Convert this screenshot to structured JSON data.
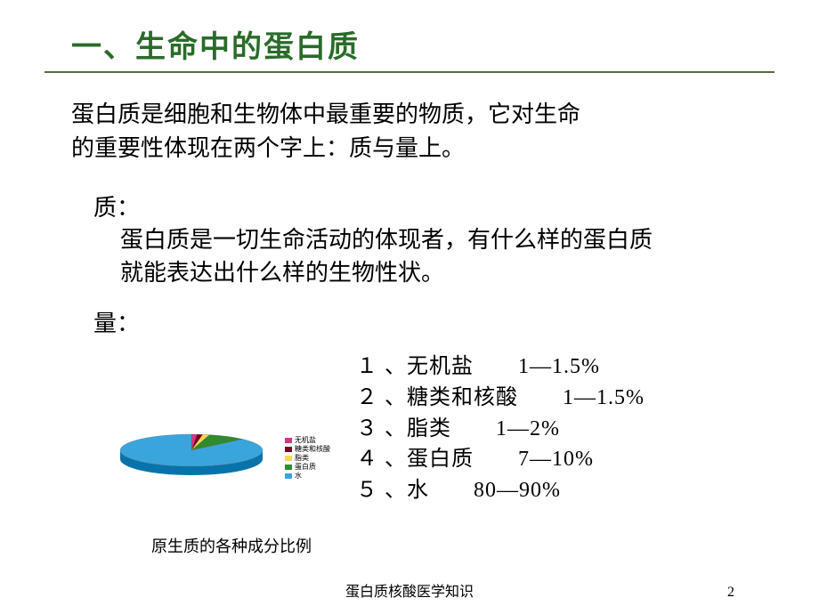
{
  "title": "一、生命中的蛋白质",
  "intro_l1": "蛋白质是细胞和生物体中最重要的物质，它对生命",
  "intro_l2": "的重要性体现在两个字上：质与量上。",
  "quality_label": "质：",
  "quality_l1": "蛋白质是一切生命活动的体现者，有什么样的蛋白质",
  "quality_l2": "就能表达出什么样的生物性状。",
  "quantity_label": "量：",
  "composition_list": [
    {
      "idx": "１",
      "name": "无机盐",
      "range": "1—1.5%"
    },
    {
      "idx": "２",
      "name": "糖类和核酸",
      "range": "1—1.5%"
    },
    {
      "idx": "３",
      "name": "脂类",
      "range": "1—2%"
    },
    {
      "idx": "４",
      "name": "蛋白质",
      "range": "7—10%"
    },
    {
      "idx": "５",
      "name": "水",
      "range": "80—90%"
    }
  ],
  "chart": {
    "type": "pie-3d",
    "caption": "原生质的各种成分比例",
    "background_color": "#ffffff",
    "slices": [
      {
        "label": "无机盐",
        "value": 1.25,
        "color": "#d63384"
      },
      {
        "label": "糖类和核酸",
        "value": 1.25,
        "color": "#7a0019"
      },
      {
        "label": "脂类",
        "value": 1.5,
        "color": "#f8d84a"
      },
      {
        "label": "蛋白质",
        "value": 8.5,
        "color": "#2e8b2e"
      },
      {
        "label": "水",
        "value": 85,
        "color": "#3aa5dd"
      }
    ],
    "legend_font_size": 8,
    "outline_color": "#808080"
  },
  "footer": "蛋白质核酸医学知识",
  "page_number": "2",
  "colors": {
    "title_color": "#2a6b2a",
    "title_underline": "#5a6b3a",
    "text_color": "#000000",
    "background": "#ffffff"
  },
  "typography": {
    "title_fontsize": 34,
    "body_fontsize": 26,
    "list_fontsize": 24,
    "caption_fontsize": 18,
    "footer_fontsize": 16
  }
}
